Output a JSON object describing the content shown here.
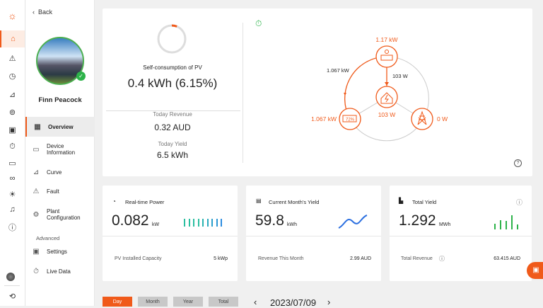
{
  "rail": {
    "icons": [
      "logo-sun-cloud-icon",
      "home-icon",
      "warning-icon",
      "clock-icon",
      "chart-icon",
      "device-icon",
      "settings-icon",
      "timer-icon",
      "storage-icon",
      "group-icon",
      "bulb-icon",
      "bell-icon",
      "help-icon",
      "avatar",
      "logout-icon"
    ]
  },
  "sidebar": {
    "back": "Back",
    "user_name": "Finn Peacock",
    "items": [
      {
        "label": "Overview",
        "icon": "grid-icon"
      },
      {
        "label": "Device Information",
        "icon": "folder-icon"
      },
      {
        "label": "Curve",
        "icon": "curve-icon"
      },
      {
        "label": "Fault",
        "icon": "warning-icon"
      },
      {
        "label": "Plant Configuration",
        "icon": "gear-icon"
      }
    ],
    "advanced_label": "Advanced",
    "advanced_items": [
      {
        "label": "Settings",
        "icon": "settings-icon"
      },
      {
        "label": "Live Data",
        "icon": "stopwatch-icon"
      }
    ]
  },
  "summary": {
    "self_consumption_label": "Self-consumption of PV",
    "self_consumption_value": "0.4 kWh (6.15%)",
    "self_consumption_percent": 6.15,
    "today_revenue_label": "Today Revenue",
    "today_revenue": "0.32 AUD",
    "today_yield_label": "Today Yield",
    "today_yield": "6.5 kWh"
  },
  "flow": {
    "pv_power": "1.17 kW",
    "pv_to_battery": "1.067 kW",
    "pv_to_home": "103 W",
    "home_load": "103 W",
    "battery_power": "1.067 kW",
    "battery_soc": "72%",
    "grid_power": "0 W",
    "accent": "#f05a1a"
  },
  "cards": [
    {
      "title": "Real-time Power",
      "value": "0.082",
      "unit": "kW",
      "footer_label": "PV Installed Capacity",
      "footer_value": "5 kWp"
    },
    {
      "title": "Current Month's Yield",
      "value": "59.8",
      "unit": "kWh",
      "footer_label": "Revenue This Month",
      "footer_value": "2.99 AUD"
    },
    {
      "title": "Total Yield",
      "value": "1.292",
      "unit": "MWh",
      "footer_label": "Total Revenue",
      "footer_value": "63.415 AUD"
    }
  ],
  "range": {
    "tabs": [
      "Day",
      "Month",
      "Year",
      "Total"
    ],
    "active": "Day",
    "date": "2023/07/09"
  }
}
